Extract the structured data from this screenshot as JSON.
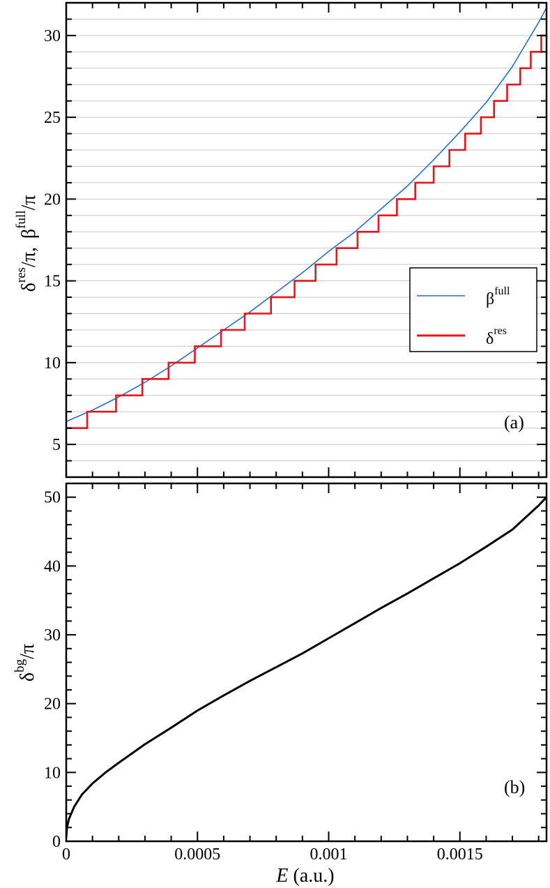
{
  "chart_data": [
    {
      "type": "line",
      "panel_label": "(a)",
      "ylabel": "δres/π,  βfull/π",
      "ylabel_parts": {
        "a_base": "δ",
        "a_sup": "res",
        "a_rest": "/π,",
        "b_base": "β",
        "b_sup": "full",
        "b_rest": "/π"
      },
      "xlim": [
        0,
        0.00183
      ],
      "ylim": [
        3,
        32
      ],
      "yticks": [
        5,
        10,
        15,
        20,
        25,
        30
      ],
      "ytick_labels": [
        "5",
        "10",
        "15",
        "20",
        "25",
        "30"
      ],
      "grid": "horizontal lines at integer values",
      "legend_position": "right-center",
      "legend_labels": {
        "beta_base": "β",
        "beta_sup": "full",
        "delta_base": "δ",
        "delta_sup": "res"
      },
      "series": [
        {
          "key": "beta_full",
          "legend": "βfull",
          "color": "#1f6fd6",
          "style": "smooth line",
          "x": [
            0,
            0.0001,
            0.0002,
            0.0003,
            0.0004,
            0.0005,
            0.0006,
            0.0007,
            0.0008,
            0.0009,
            0.001,
            0.0011,
            0.0012,
            0.0013,
            0.0014,
            0.0015,
            0.0016,
            0.0017,
            0.0018,
            0.00183
          ],
          "y": [
            6.4,
            7.1,
            7.9,
            8.8,
            9.8,
            10.9,
            12.0,
            13.1,
            14.3,
            15.5,
            16.8,
            18.0,
            19.4,
            20.8,
            22.4,
            24.1,
            25.9,
            28.1,
            30.8,
            31.7
          ]
        },
        {
          "key": "delta_res",
          "legend": "δres",
          "color": "#e8141a",
          "style": "step",
          "step_x": [
            8e-05,
            0.00019,
            0.00029,
            0.00039,
            0.00049,
            0.00059,
            0.00068,
            0.00078,
            0.00087,
            0.00095,
            0.00103,
            0.00111,
            0.00119,
            0.00126,
            0.00133,
            0.0014,
            0.00146,
            0.00152,
            0.00158,
            0.00163,
            0.00168,
            0.00173,
            0.00177,
            0.00181
          ],
          "start_level": 6,
          "end_level": 30,
          "final_rise_to": 31
        }
      ]
    },
    {
      "type": "line",
      "panel_label": "(b)",
      "ylabel": "δbg/π",
      "ylabel_parts": {
        "base": "δ",
        "sup": "bg",
        "rest": "/π"
      },
      "xlabel": "E (a.u.)",
      "xlabel_parts": {
        "var": "E",
        "unit": " (a.u.)"
      },
      "xlim": [
        0,
        0.00183
      ],
      "ylim": [
        0,
        52
      ],
      "xticks": [
        0,
        0.0005,
        0.001,
        0.0015
      ],
      "xtick_labels": [
        "0",
        "0.0005",
        "0.001",
        "0.0015"
      ],
      "yticks": [
        0,
        10,
        20,
        30,
        40,
        50
      ],
      "ytick_labels": [
        "0",
        "10",
        "20",
        "30",
        "40",
        "50"
      ],
      "series": [
        {
          "key": "delta_bg",
          "color": "#000000",
          "x": [
            0,
            3e-06,
            1e-05,
            3e-05,
            6e-05,
            0.0001,
            0.00015,
            0.0002,
            0.0003,
            0.0004,
            0.0005,
            0.0006,
            0.0007,
            0.0008,
            0.0009,
            0.001,
            0.0011,
            0.0012,
            0.0013,
            0.0014,
            0.0015,
            0.0016,
            0.0017,
            0.0018,
            0.00183
          ],
          "y": [
            0.5,
            2.0,
            3.2,
            5.0,
            6.8,
            8.4,
            10.0,
            11.4,
            14.1,
            16.5,
            19.0,
            21.2,
            23.3,
            25.3,
            27.3,
            29.5,
            31.7,
            33.9,
            36.0,
            38.2,
            40.4,
            42.8,
            45.3,
            48.8,
            50.0
          ]
        }
      ]
    }
  ]
}
